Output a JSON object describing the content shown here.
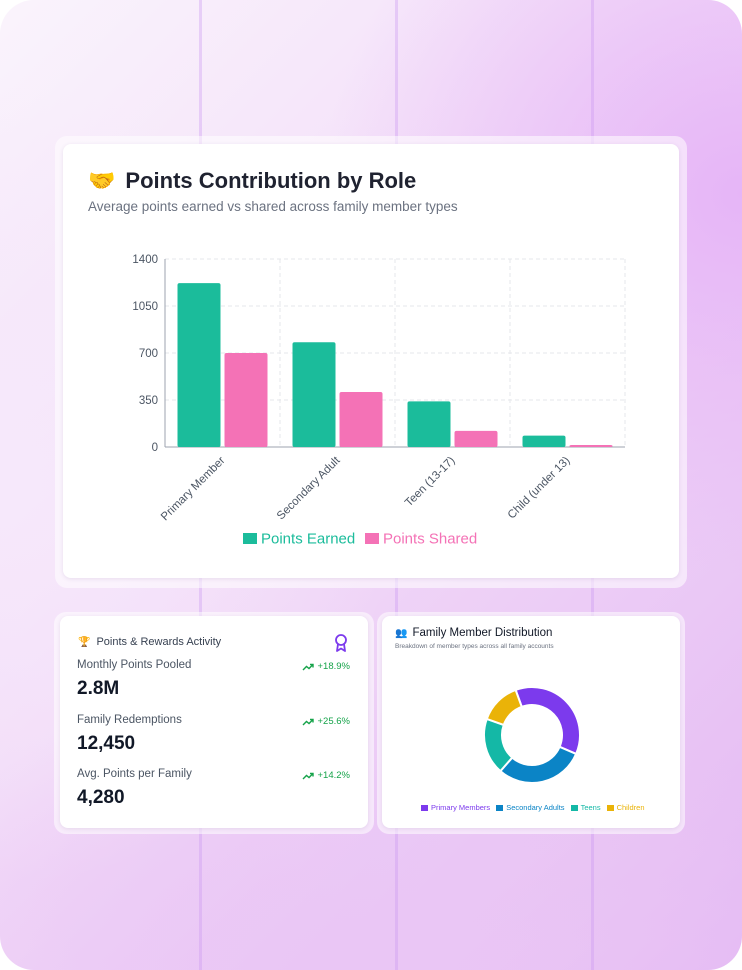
{
  "main_chart": {
    "icon": "handshake-icon",
    "title": "Points Contribution by Role",
    "subtitle": "Average points earned vs shared across family member types"
  },
  "chart_data": [
    {
      "type": "bar",
      "categories": [
        "Primary Member",
        "Secondary Adult",
        "Teen (13-17)",
        "Child (under 13)"
      ],
      "series": [
        {
          "name": "Points Earned",
          "color": "#1bbc9b",
          "values": [
            1220,
            780,
            340,
            85
          ]
        },
        {
          "name": "Points Shared",
          "color": "#f472b6",
          "values": [
            700,
            410,
            120,
            15
          ]
        }
      ],
      "yticks": [
        0,
        350,
        700,
        1050,
        1400
      ],
      "ylim": [
        0,
        1400
      ],
      "grid": true,
      "legend_position": "bottom"
    },
    {
      "type": "pie",
      "title": "Family Member Distribution",
      "subtitle": "Breakdown of member types across all family accounts",
      "categories": [
        "Primary Members",
        "Secondary Adults",
        "Teens",
        "Children"
      ],
      "colors": [
        "#7c3aed",
        "#0b84c6",
        "#14b8a6",
        "#eab308"
      ],
      "values": [
        37,
        30,
        19,
        14
      ],
      "legend_position": "bottom"
    }
  ],
  "stats": {
    "icon": "trophy-icon",
    "title": "Points & Rewards Activity",
    "badge_icon": "award-icon",
    "items": [
      {
        "label": "Monthly Points Pooled",
        "value": "2.8M",
        "change": "+18.9%",
        "change_icon": "trend-up-icon"
      },
      {
        "label": "Family Redemptions",
        "value": "12,450",
        "change": "+25.6%",
        "change_icon": "trend-up-icon"
      },
      {
        "label": "Avg. Points per Family",
        "value": "4,280",
        "change": "+14.2%",
        "change_icon": "trend-up-icon"
      }
    ]
  },
  "distribution": {
    "icon": "people-icon"
  }
}
